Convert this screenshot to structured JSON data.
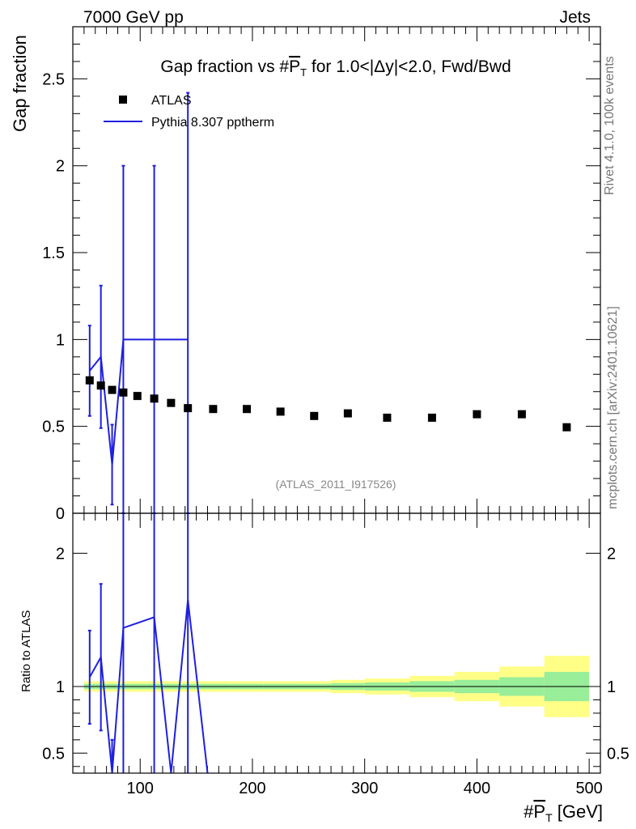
{
  "header": {
    "left": "7000 GeV pp",
    "right": "Jets",
    "side_top": "Rivet 4.1.0,  100k events",
    "side_bottom": "mcplots.cern.ch [arXiv:2401.10621]"
  },
  "colors": {
    "data": "#000000",
    "mc": "#1f1fe0",
    "band_inner": "#99ee99",
    "band_outer": "#ffff88",
    "label_gray": "#888888"
  },
  "chart_data": [
    {
      "type": "scatter",
      "panel": "main",
      "title": "Gap fraction vs #P_T for 1.0<|Δy|<2.0, Fwd/Bwd",
      "title_parts": {
        "prefix": "Gap fraction vs #",
        "var": "P",
        "sub": "T",
        "suffix": " for 1.0<|Δy|<2.0, Fwd/Bwd"
      },
      "ylabel": "Gap fraction",
      "watermark": "(ATLAS_2011_I917526)",
      "xlim": [
        40,
        510
      ],
      "ylim": [
        0,
        2.8
      ],
      "yticks": [
        {
          "v": 0,
          "label": "0"
        },
        {
          "v": 0.5,
          "label": "0.5"
        },
        {
          "v": 1,
          "label": "1"
        },
        {
          "v": 1.5,
          "label": "1.5"
        },
        {
          "v": 2,
          "label": "2"
        },
        {
          "v": 2.5,
          "label": "2.5"
        }
      ],
      "legend": [
        {
          "name": "ATLAS",
          "marker": "square"
        },
        {
          "name": "Pythia 8.307 pptherm",
          "marker": "line"
        }
      ],
      "series": [
        {
          "name": "ATLAS",
          "x": [
            55,
            65,
            75,
            85,
            97.5,
            112.5,
            127.5,
            142.5,
            165,
            195,
            225,
            255,
            285,
            320,
            360,
            400,
            440,
            480
          ],
          "y": [
            0.765,
            0.735,
            0.71,
            0.695,
            0.675,
            0.66,
            0.635,
            0.605,
            0.6,
            0.6,
            0.585,
            0.56,
            0.575,
            0.55,
            0.55,
            0.57,
            0.57,
            0.495
          ]
        },
        {
          "name": "Pythia 8.307 pptherm",
          "x": [
            55,
            65,
            75,
            85,
            112.5,
            142.5
          ],
          "y": [
            0.82,
            0.9,
            0.28,
            1.0,
            1.0,
            1.0
          ],
          "err": [
            0.26,
            0.41,
            0.23,
            1.0,
            1.0,
            1.42
          ],
          "xerr_hline": [
            85,
            142.5
          ]
        }
      ]
    },
    {
      "type": "line",
      "panel": "ratio",
      "ylabel": "Ratio to ATLAS",
      "xlabel_parts": {
        "prefix": "#",
        "var": "P",
        "sub": "T",
        "suffix": " [GeV]"
      },
      "xlim": [
        40,
        510
      ],
      "ylim": [
        0.35,
        2.3
      ],
      "xticks": [
        {
          "v": 100,
          "label": "100"
        },
        {
          "v": 200,
          "label": "200"
        },
        {
          "v": 300,
          "label": "300"
        },
        {
          "v": 400,
          "label": "400"
        },
        {
          "v": 500,
          "label": "500"
        }
      ],
      "yticks": [
        {
          "v": 0.5,
          "label": "0.5"
        },
        {
          "v": 1,
          "label": "1"
        },
        {
          "v": 2,
          "label": "2"
        }
      ],
      "bands": {
        "edges": [
          50,
          60,
          70,
          80,
          90,
          105,
          120,
          135,
          150,
          180,
          210,
          240,
          270,
          300,
          340,
          380,
          420,
          460,
          500
        ],
        "inner": [
          0.02,
          0.02,
          0.02,
          0.02,
          0.02,
          0.02,
          0.02,
          0.02,
          0.02,
          0.02,
          0.02,
          0.02,
          0.025,
          0.03,
          0.04,
          0.05,
          0.07,
          0.11
        ],
        "outer": [
          0.04,
          0.04,
          0.04,
          0.04,
          0.04,
          0.04,
          0.04,
          0.04,
          0.04,
          0.04,
          0.04,
          0.04,
          0.05,
          0.06,
          0.08,
          0.11,
          0.15,
          0.23
        ]
      },
      "series": [
        {
          "name": "Pythia 8.307 pptherm / ATLAS",
          "x": [
            55,
            65,
            75,
            85,
            112.5,
            127.5,
            142.5,
            160
          ],
          "y": [
            1.07,
            1.22,
            0.3,
            1.44,
            1.52,
            0.3,
            1.65,
            0.3
          ],
          "err": [
            0.35,
            0.55,
            0.3,
            1.44,
            1.52,
            0,
            2.3,
            0
          ]
        }
      ]
    }
  ]
}
